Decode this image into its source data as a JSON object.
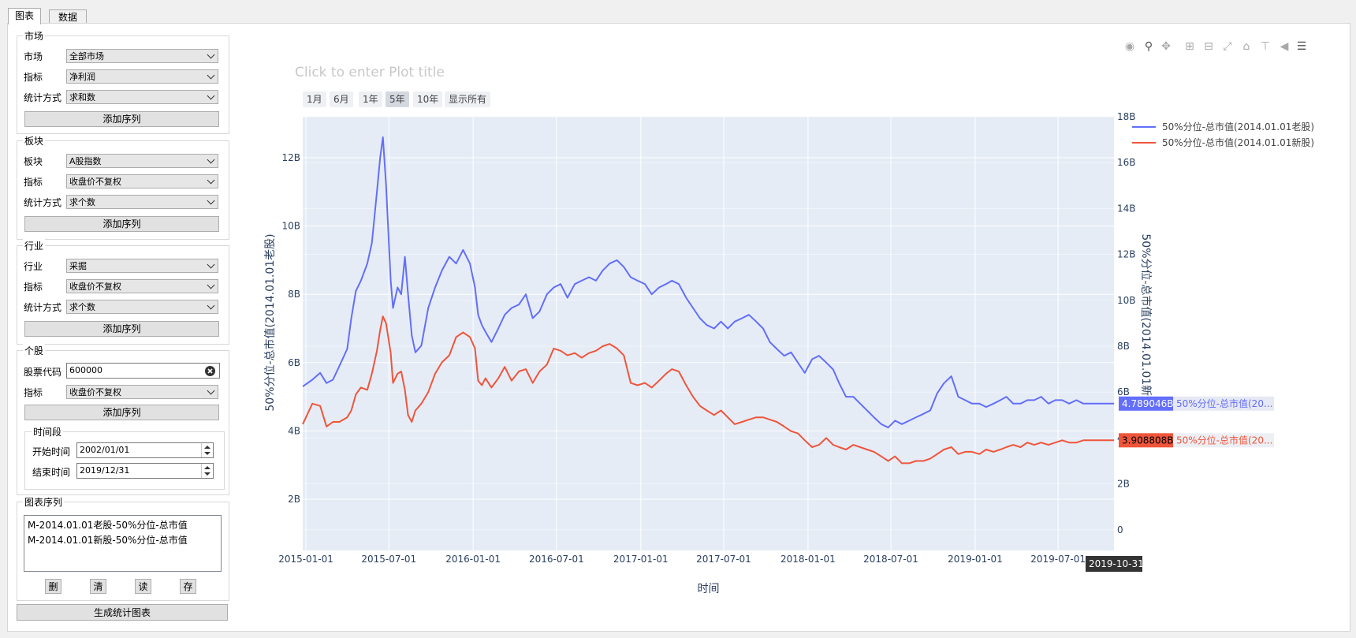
{
  "tabs": [
    {
      "label": "图表"
    },
    {
      "label": "数据"
    }
  ],
  "market": {
    "title": "市场",
    "market_label": "市场",
    "market_value": "全部市场",
    "indicator_label": "指标",
    "indicator_value": "净利润",
    "stat_label": "统计方式",
    "stat_value": "求和数",
    "add_label": "添加序列"
  },
  "sector": {
    "title": "板块",
    "sector_label": "板块",
    "sector_value": "A股指数",
    "indicator_label": "指标",
    "indicator_value": "收盘价不复权",
    "stat_label": "统计方式",
    "stat_value": "求个数",
    "add_label": "添加序列"
  },
  "industry": {
    "title": "行业",
    "industry_label": "行业",
    "industry_value": "采掘",
    "indicator_label": "指标",
    "indicator_value": "收盘价不复权",
    "stat_label": "统计方式",
    "stat_value": "求个数",
    "add_label": "添加序列"
  },
  "stock": {
    "title": "个股",
    "code_label": "股票代码",
    "code_value": "600000",
    "indicator_label": "指标",
    "indicator_value": "收盘价不复权",
    "add_label": "添加序列",
    "period_title": "时间段",
    "start_label": "开始时间",
    "start_value": "2002/01/01",
    "end_label": "结束时间",
    "end_value": "2019/12/31"
  },
  "series_panel": {
    "title": "图表序列",
    "items": [
      "M-2014.01.01老股-50%分位-总市值",
      "M-2014.01.01新股-50%分位-总市值"
    ],
    "btn_delete": "删",
    "btn_clear": "清",
    "btn_read": "读",
    "btn_save": "存"
  },
  "generate_label": "生成统计图表",
  "plot_title_placeholder": "Click to enter Plot title",
  "range_selector": [
    "1月",
    "6月",
    "1年",
    "5年",
    "10年",
    "显示所有"
  ],
  "range_selector_active": "5年",
  "hover": {
    "old_value": "4.789046B",
    "old_label": "50%分位-总市值(20...",
    "new_value": "3.908808B",
    "new_label": "50%分位-总市值(20...",
    "x_value": "2019-10-31"
  },
  "colors": {
    "old": "#636efa",
    "new": "#ef553b",
    "plot_bg": "#e5ecf6"
  },
  "chart_data": {
    "type": "line",
    "xlabel": "时间",
    "ylabel": "50%分位-总市值(2014.01.01老股)",
    "y2label": "50%分位-总市值(2014.01.01新股)",
    "x_range": [
      "2014-12-25",
      "2019-10-31"
    ],
    "ylim": [
      0.5,
      13.2
    ],
    "y2lim": [
      -0.9,
      18
    ],
    "x_ticks": [
      "2015-01-01",
      "2015-07-01",
      "2016-01-01",
      "2016-07-01",
      "2017-01-01",
      "2017-07-01",
      "2018-01-01",
      "2018-07-01",
      "2019-01-01",
      "2019-07-01"
    ],
    "y_ticks": [
      {
        "v": 2,
        "label": "2B"
      },
      {
        "v": 4,
        "label": "4B"
      },
      {
        "v": 6,
        "label": "6B"
      },
      {
        "v": 8,
        "label": "8B"
      },
      {
        "v": 10,
        "label": "10B"
      },
      {
        "v": 12,
        "label": "12B"
      }
    ],
    "y2_ticks": [
      {
        "v": 0,
        "label": "0"
      },
      {
        "v": 2,
        "label": "2B"
      },
      {
        "v": 4,
        "label": "4B"
      },
      {
        "v": 6,
        "label": "6B"
      },
      {
        "v": 8,
        "label": "8B"
      },
      {
        "v": 10,
        "label": "10B"
      },
      {
        "v": 12,
        "label": "12B"
      },
      {
        "v": 14,
        "label": "14B"
      },
      {
        "v": 16,
        "label": "16B"
      },
      {
        "v": 18,
        "label": "18B"
      }
    ],
    "grid": true,
    "legend_position": "top-right",
    "series": [
      {
        "name": "50%分位-总市值(2014.01.01老股)",
        "axis": "y",
        "color": "#636efa",
        "x": [
          "2014-12-25",
          "2015-01-15",
          "2015-02-01",
          "2015-02-15",
          "2015-03-01",
          "2015-03-15",
          "2015-04-01",
          "2015-04-10",
          "2015-04-20",
          "2015-05-01",
          "2015-05-15",
          "2015-05-25",
          "2015-06-05",
          "2015-06-12",
          "2015-06-18",
          "2015-06-25",
          "2015-07-05",
          "2015-07-10",
          "2015-07-20",
          "2015-07-28",
          "2015-08-05",
          "2015-08-12",
          "2015-08-20",
          "2015-08-28",
          "2015-09-10",
          "2015-09-25",
          "2015-10-10",
          "2015-10-25",
          "2015-11-10",
          "2015-11-25",
          "2015-12-10",
          "2015-12-25",
          "2016-01-05",
          "2016-01-12",
          "2016-01-20",
          "2016-01-28",
          "2016-02-10",
          "2016-02-25",
          "2016-03-10",
          "2016-03-25",
          "2016-04-10",
          "2016-04-25",
          "2016-05-10",
          "2016-05-25",
          "2016-06-10",
          "2016-06-25",
          "2016-07-10",
          "2016-07-25",
          "2016-08-10",
          "2016-08-25",
          "2016-09-10",
          "2016-09-25",
          "2016-10-10",
          "2016-10-25",
          "2016-11-10",
          "2016-11-25",
          "2016-12-10",
          "2016-12-25",
          "2017-01-10",
          "2017-01-25",
          "2017-02-10",
          "2017-02-25",
          "2017-03-10",
          "2017-03-25",
          "2017-04-10",
          "2017-04-25",
          "2017-05-10",
          "2017-05-25",
          "2017-06-10",
          "2017-06-25",
          "2017-07-10",
          "2017-07-25",
          "2017-08-10",
          "2017-08-25",
          "2017-09-10",
          "2017-09-25",
          "2017-10-10",
          "2017-10-25",
          "2017-11-10",
          "2017-11-25",
          "2017-12-10",
          "2017-12-25",
          "2018-01-10",
          "2018-01-25",
          "2018-02-10",
          "2018-02-25",
          "2018-03-10",
          "2018-03-25",
          "2018-04-10",
          "2018-04-25",
          "2018-05-10",
          "2018-05-25",
          "2018-06-10",
          "2018-06-25",
          "2018-07-10",
          "2018-07-25",
          "2018-08-10",
          "2018-08-25",
          "2018-09-10",
          "2018-09-25",
          "2018-10-10",
          "2018-10-25",
          "2018-11-10",
          "2018-11-25",
          "2018-12-10",
          "2018-12-25",
          "2019-01-10",
          "2019-01-25",
          "2019-02-10",
          "2019-02-25",
          "2019-03-10",
          "2019-03-25",
          "2019-04-10",
          "2019-04-25",
          "2019-05-10",
          "2019-05-25",
          "2019-06-10",
          "2019-06-25",
          "2019-07-10",
          "2019-07-25",
          "2019-08-10",
          "2019-08-25",
          "2019-09-10",
          "2019-09-25",
          "2019-10-10",
          "2019-10-31"
        ],
        "y": [
          5.3,
          5.5,
          5.7,
          5.4,
          5.5,
          5.9,
          6.4,
          7.3,
          8.1,
          8.4,
          8.9,
          9.5,
          11.0,
          12.0,
          12.6,
          11.2,
          8.4,
          7.6,
          8.2,
          8.0,
          9.1,
          8.0,
          6.8,
          6.3,
          6.5,
          7.6,
          8.2,
          8.7,
          9.1,
          8.9,
          9.3,
          8.9,
          8.2,
          7.4,
          7.1,
          6.9,
          6.6,
          7.0,
          7.4,
          7.6,
          7.7,
          8.0,
          7.3,
          7.5,
          8.0,
          8.2,
          8.3,
          7.9,
          8.3,
          8.4,
          8.5,
          8.4,
          8.7,
          8.9,
          9.0,
          8.8,
          8.5,
          8.4,
          8.3,
          8.0,
          8.2,
          8.3,
          8.4,
          8.3,
          7.9,
          7.6,
          7.3,
          7.1,
          7.0,
          7.2,
          7.0,
          7.2,
          7.3,
          7.4,
          7.2,
          7.0,
          6.6,
          6.4,
          6.2,
          6.3,
          6.0,
          5.7,
          6.1,
          6.2,
          6.0,
          5.8,
          5.4,
          5.0,
          5.0,
          4.8,
          4.6,
          4.4,
          4.2,
          4.1,
          4.3,
          4.2,
          4.3,
          4.4,
          4.5,
          4.6,
          5.1,
          5.4,
          5.6,
          5.0,
          4.9,
          4.8,
          4.8,
          4.7,
          4.8,
          4.9,
          5.0,
          4.8,
          4.8,
          4.9,
          4.9,
          5.0,
          4.8,
          4.9,
          4.9,
          4.8,
          4.9,
          4.8,
          4.8,
          4.8,
          4.8,
          4.8
        ]
      },
      {
        "name": "50%分位-总市值(2014.01.01新股)",
        "axis": "y2",
        "color": "#ef553b",
        "x": [
          "2014-12-25",
          "2015-01-15",
          "2015-02-01",
          "2015-02-15",
          "2015-03-01",
          "2015-03-15",
          "2015-04-01",
          "2015-04-10",
          "2015-04-20",
          "2015-05-01",
          "2015-05-15",
          "2015-05-25",
          "2015-06-05",
          "2015-06-12",
          "2015-06-18",
          "2015-06-25",
          "2015-07-05",
          "2015-07-10",
          "2015-07-20",
          "2015-07-28",
          "2015-08-05",
          "2015-08-12",
          "2015-08-20",
          "2015-08-28",
          "2015-09-10",
          "2015-09-25",
          "2015-10-10",
          "2015-10-25",
          "2015-11-10",
          "2015-11-25",
          "2015-12-10",
          "2015-12-25",
          "2016-01-05",
          "2016-01-12",
          "2016-01-20",
          "2016-01-28",
          "2016-02-10",
          "2016-02-25",
          "2016-03-10",
          "2016-03-25",
          "2016-04-10",
          "2016-04-25",
          "2016-05-10",
          "2016-05-25",
          "2016-06-10",
          "2016-06-25",
          "2016-07-10",
          "2016-07-25",
          "2016-08-10",
          "2016-08-25",
          "2016-09-10",
          "2016-09-25",
          "2016-10-10",
          "2016-10-25",
          "2016-11-10",
          "2016-11-25",
          "2016-12-10",
          "2016-12-25",
          "2017-01-10",
          "2017-01-25",
          "2017-02-10",
          "2017-02-25",
          "2017-03-10",
          "2017-03-25",
          "2017-04-10",
          "2017-04-25",
          "2017-05-10",
          "2017-05-25",
          "2017-06-10",
          "2017-06-25",
          "2017-07-10",
          "2017-07-25",
          "2017-08-10",
          "2017-08-25",
          "2017-09-10",
          "2017-09-25",
          "2017-10-10",
          "2017-10-25",
          "2017-11-10",
          "2017-11-25",
          "2017-12-10",
          "2017-12-25",
          "2018-01-10",
          "2018-01-25",
          "2018-02-10",
          "2018-02-25",
          "2018-03-10",
          "2018-03-25",
          "2018-04-10",
          "2018-04-25",
          "2018-05-10",
          "2018-05-25",
          "2018-06-10",
          "2018-06-25",
          "2018-07-10",
          "2018-07-25",
          "2018-08-10",
          "2018-08-25",
          "2018-09-10",
          "2018-09-25",
          "2018-10-10",
          "2018-10-25",
          "2018-11-10",
          "2018-11-25",
          "2018-12-10",
          "2018-12-25",
          "2019-01-10",
          "2019-01-25",
          "2019-02-10",
          "2019-02-25",
          "2019-03-10",
          "2019-03-25",
          "2019-04-10",
          "2019-04-25",
          "2019-05-10",
          "2019-05-25",
          "2019-06-10",
          "2019-06-25",
          "2019-07-10",
          "2019-07-25",
          "2019-08-10",
          "2019-08-25",
          "2019-09-10",
          "2019-09-25",
          "2019-10-10",
          "2019-10-31"
        ],
        "y": [
          4.6,
          5.5,
          5.4,
          4.5,
          4.7,
          4.7,
          4.9,
          5.2,
          5.9,
          6.2,
          6.1,
          6.8,
          7.8,
          8.7,
          9.3,
          9.0,
          7.7,
          6.4,
          6.8,
          6.9,
          6.1,
          5.0,
          4.7,
          5.2,
          5.5,
          6.0,
          6.8,
          7.3,
          7.6,
          8.4,
          8.6,
          8.4,
          7.9,
          6.5,
          6.3,
          6.6,
          6.2,
          6.6,
          7.1,
          6.5,
          6.9,
          7.0,
          6.4,
          6.9,
          7.2,
          7.9,
          7.8,
          7.6,
          7.7,
          7.5,
          7.7,
          7.8,
          8.0,
          8.1,
          7.9,
          7.6,
          6.4,
          6.3,
          6.4,
          6.2,
          6.5,
          6.8,
          7.0,
          6.9,
          6.3,
          5.8,
          5.4,
          5.2,
          5.0,
          5.2,
          4.9,
          4.6,
          4.7,
          4.8,
          4.9,
          4.9,
          4.8,
          4.7,
          4.5,
          4.3,
          4.2,
          3.9,
          3.6,
          3.7,
          4.0,
          3.7,
          3.6,
          3.5,
          3.7,
          3.6,
          3.5,
          3.4,
          3.2,
          3.0,
          3.2,
          2.9,
          2.9,
          3.0,
          3.0,
          3.1,
          3.3,
          3.5,
          3.6,
          3.3,
          3.4,
          3.4,
          3.3,
          3.5,
          3.4,
          3.5,
          3.6,
          3.7,
          3.6,
          3.8,
          3.7,
          3.8,
          3.7,
          3.8,
          3.9,
          3.8,
          3.8,
          3.9,
          3.9,
          3.9,
          3.9,
          3.9
        ]
      }
    ]
  }
}
